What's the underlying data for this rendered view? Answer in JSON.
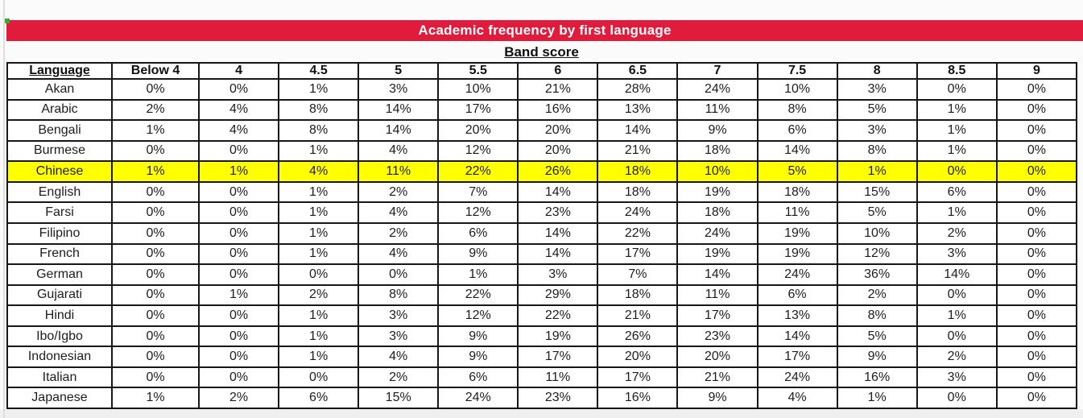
{
  "colors": {
    "title_bg": "#e11b3b",
    "title_text": "#ffffff",
    "row_highlight": "#ffff00",
    "corner_mark": "#3aaa35",
    "table_border": "#161616"
  },
  "chart_data": {
    "type": "table",
    "title": "Academic frequency by first language",
    "subtitle": "Band score",
    "unit": "%",
    "columns": [
      "Language",
      "Below 4",
      "4",
      "4.5",
      "5",
      "5.5",
      "6",
      "6.5",
      "7",
      "7.5",
      "8",
      "8.5",
      "9"
    ],
    "highlighted_language": "Chinese",
    "rows": [
      {
        "language": "Akan",
        "values": [
          0,
          0,
          1,
          3,
          10,
          21,
          28,
          24,
          10,
          3,
          0,
          0
        ]
      },
      {
        "language": "Arabic",
        "values": [
          2,
          4,
          8,
          14,
          17,
          16,
          13,
          11,
          8,
          5,
          1,
          0
        ]
      },
      {
        "language": "Bengali",
        "values": [
          1,
          4,
          8,
          14,
          20,
          20,
          14,
          9,
          6,
          3,
          1,
          0
        ]
      },
      {
        "language": "Burmese",
        "values": [
          0,
          0,
          1,
          4,
          12,
          20,
          21,
          18,
          14,
          8,
          1,
          0
        ]
      },
      {
        "language": "Chinese",
        "values": [
          1,
          1,
          4,
          11,
          22,
          26,
          18,
          10,
          5,
          1,
          0,
          0
        ]
      },
      {
        "language": "English",
        "values": [
          0,
          0,
          1,
          2,
          7,
          14,
          18,
          19,
          18,
          15,
          6,
          0
        ]
      },
      {
        "language": "Farsi",
        "values": [
          0,
          0,
          1,
          4,
          12,
          23,
          24,
          18,
          11,
          5,
          1,
          0
        ]
      },
      {
        "language": "Filipino",
        "values": [
          0,
          0,
          1,
          2,
          6,
          14,
          22,
          24,
          19,
          10,
          2,
          0
        ]
      },
      {
        "language": "French",
        "values": [
          0,
          0,
          1,
          4,
          9,
          14,
          17,
          19,
          19,
          12,
          3,
          0
        ]
      },
      {
        "language": "German",
        "values": [
          0,
          0,
          0,
          0,
          1,
          3,
          7,
          14,
          24,
          36,
          14,
          0
        ]
      },
      {
        "language": "Gujarati",
        "values": [
          0,
          1,
          2,
          8,
          22,
          29,
          18,
          11,
          6,
          2,
          0,
          0
        ]
      },
      {
        "language": "Hindi",
        "values": [
          0,
          0,
          1,
          3,
          12,
          22,
          21,
          17,
          13,
          8,
          1,
          0
        ]
      },
      {
        "language": "Ibo/Igbo",
        "values": [
          0,
          0,
          1,
          3,
          9,
          19,
          26,
          23,
          14,
          5,
          0,
          0
        ]
      },
      {
        "language": "Indonesian",
        "values": [
          0,
          0,
          1,
          4,
          9,
          17,
          20,
          20,
          17,
          9,
          2,
          0
        ]
      },
      {
        "language": "Italian",
        "values": [
          0,
          0,
          0,
          2,
          6,
          11,
          17,
          21,
          24,
          16,
          3,
          0
        ]
      },
      {
        "language": "Japanese",
        "values": [
          1,
          2,
          6,
          15,
          24,
          23,
          16,
          9,
          4,
          1,
          0,
          0
        ]
      }
    ]
  }
}
